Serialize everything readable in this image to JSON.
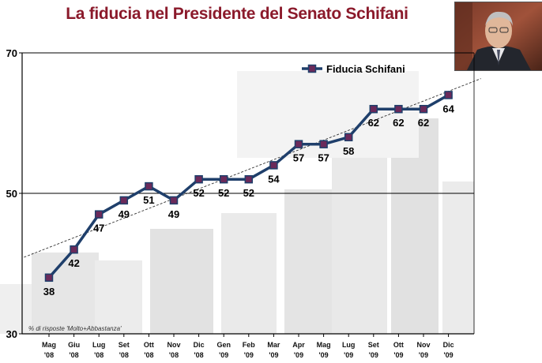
{
  "title": "La fiducia nel Presidente del Senato Schifani",
  "photo_icon": "portrait-photo",
  "chart_data": {
    "type": "line",
    "title": "La fiducia nel Presidente del Senato Schifani",
    "xlabel": "",
    "ylabel": "",
    "ylim": [
      30,
      70
    ],
    "yticks": [
      30,
      50,
      70
    ],
    "grid": true,
    "legend_position": "top-right",
    "note": "% di risposte 'Molto+Abbastanza'",
    "categories": [
      [
        "Mag",
        "'08"
      ],
      [
        "Giu",
        "'08"
      ],
      [
        "Lug",
        "'08"
      ],
      [
        "Set",
        "'08"
      ],
      [
        "Ott",
        "'08"
      ],
      [
        "Nov",
        "'08"
      ],
      [
        "Dic",
        "'08"
      ],
      [
        "Gen",
        "'09"
      ],
      [
        "Feb",
        "'09"
      ],
      [
        "Mar",
        "'09"
      ],
      [
        "Apr",
        "'09"
      ],
      [
        "Mag",
        "'09"
      ],
      [
        "Lug",
        "'09"
      ],
      [
        "Set",
        "'09"
      ],
      [
        "Ott",
        "'09"
      ],
      [
        "Nov",
        "'09"
      ],
      [
        "Dic",
        "'09"
      ]
    ],
    "series": [
      {
        "name": "Fiducia Schifani",
        "color": "#1f3f6b",
        "marker_color": "#6b2a5a",
        "values": [
          38,
          42,
          47,
          49,
          51,
          49,
          52,
          52,
          52,
          54,
          57,
          57,
          58,
          62,
          62,
          62,
          64
        ]
      }
    ],
    "trendline": true
  }
}
